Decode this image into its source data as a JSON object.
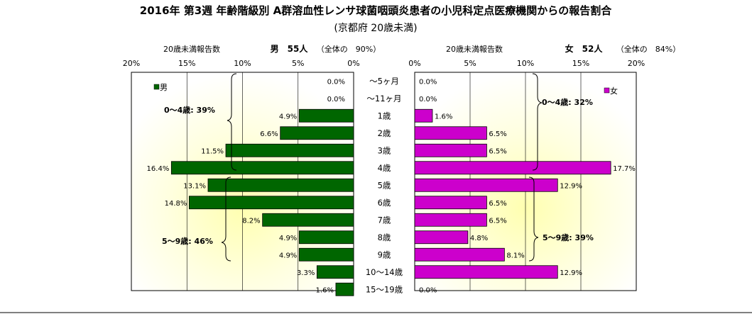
{
  "chart_data": {
    "type": "bar",
    "title": "2016年 第3週 年齢階級別 A群溶血性レンサ球菌咽頭炎患者の小児科定点医療機関からの報告割合",
    "subtitle": "(京都府 20歳未満)",
    "categories": [
      "～5ヶ月",
      "～11ヶ月",
      "1歳",
      "2歳",
      "3歳",
      "4歳",
      "5歳",
      "6歳",
      "7歳",
      "8歳",
      "9歳",
      "10～14歳",
      "15～19歳"
    ],
    "xlim": [
      0,
      20
    ],
    "ticks": [
      "20%",
      "15%",
      "10%",
      "5%",
      "0%"
    ],
    "ticks_right": [
      "0%",
      "5%",
      "10%",
      "15%",
      "20%"
    ],
    "series": [
      {
        "name": "男",
        "color": "#006600",
        "values": [
          0.0,
          0.0,
          4.9,
          6.6,
          11.5,
          16.4,
          13.1,
          14.8,
          8.2,
          4.9,
          4.9,
          3.3,
          1.6
        ],
        "labels": [
          "0.0%",
          "0.0%",
          "4.9%",
          "6.6%",
          "11.5%",
          "16.4%",
          "13.1%",
          "14.8%",
          "8.2%",
          "4.9%",
          "4.9%",
          "3.3%",
          "1.6%"
        ]
      },
      {
        "name": "女",
        "color": "#CC00CC",
        "values": [
          0.0,
          0.0,
          1.6,
          6.5,
          6.5,
          17.7,
          12.9,
          6.5,
          6.5,
          4.8,
          8.1,
          12.9,
          0.0
        ],
        "labels": [
          "0.0%",
          "0.0%",
          "1.6%",
          "6.5%",
          "6.5%",
          "17.7%",
          "12.9%",
          "6.5%",
          "6.5%",
          "4.8%",
          "8.1%",
          "12.9%",
          "0.0%"
        ]
      }
    ],
    "headers": {
      "left_count_label": "20歳未満報告数",
      "left_gender_count": "男　55人",
      "left_share": "（全体の　90%）",
      "right_count_label": "20歳未満報告数",
      "right_gender_count": "女　52人",
      "right_share": "（全体の　84%）"
    },
    "annotations": {
      "male_0_4": "0～4歳: 39%",
      "male_5_9": "5～9歳: 46%",
      "female_0_4": "0～4歳: 32%",
      "female_5_9": "5～9歳: 39%"
    },
    "grid": true,
    "legend_position": "top-left / top-right"
  }
}
